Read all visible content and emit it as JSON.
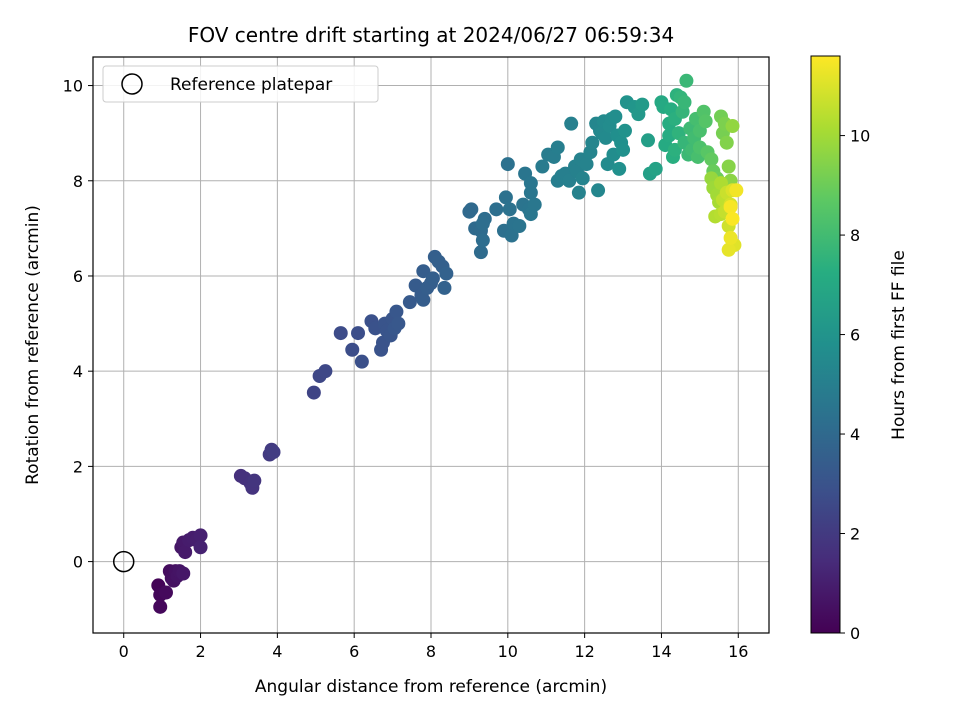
{
  "chart_data": {
    "type": "scatter",
    "title": "FOV centre drift starting at 2024/06/27 06:59:34",
    "xlabel": "Angular distance from reference (arcmin)",
    "ylabel": "Rotation from reference (arcmin)",
    "xlim": [
      -0.8,
      16.8
    ],
    "ylim": [
      -1.5,
      10.6
    ],
    "xticks": [
      0,
      2,
      4,
      6,
      8,
      10,
      12,
      14,
      16
    ],
    "yticks": [
      0,
      2,
      4,
      6,
      8,
      10
    ],
    "grid": true,
    "legend": {
      "position": "upper-left",
      "entries": [
        {
          "label": "Reference platepar",
          "marker": "open-circle",
          "x": 0,
          "y": 0
        }
      ]
    },
    "colorbar": {
      "label": "Hours from first FF file",
      "colormap": "viridis",
      "range": [
        0,
        11.6
      ],
      "ticks": [
        0,
        2,
        4,
        6,
        8,
        10
      ]
    },
    "series": [
      {
        "points": [
          [
            0.9,
            -0.5,
            0.1
          ],
          [
            0.95,
            -0.7,
            0.2
          ],
          [
            0.95,
            -0.95,
            0.25
          ],
          [
            1.1,
            -0.65,
            0.3
          ],
          [
            1.2,
            -0.2,
            0.4
          ],
          [
            1.25,
            -0.35,
            0.45
          ],
          [
            1.3,
            -0.4,
            0.5
          ],
          [
            1.35,
            -0.2,
            0.55
          ],
          [
            1.4,
            -0.3,
            0.6
          ],
          [
            1.45,
            -0.2,
            0.65
          ],
          [
            1.5,
            0.3,
            0.7
          ],
          [
            1.55,
            -0.25,
            0.75
          ],
          [
            1.55,
            0.4,
            0.8
          ],
          [
            1.6,
            0.2,
            0.85
          ],
          [
            1.7,
            0.45,
            0.9
          ],
          [
            1.8,
            0.5,
            0.95
          ],
          [
            1.9,
            0.45,
            1.0
          ],
          [
            2.0,
            0.55,
            1.05
          ],
          [
            2.0,
            0.3,
            1.1
          ],
          [
            3.05,
            1.8,
            1.6
          ],
          [
            3.15,
            1.75,
            1.65
          ],
          [
            3.3,
            1.65,
            1.7
          ],
          [
            3.35,
            1.55,
            1.75
          ],
          [
            3.4,
            1.7,
            1.8
          ],
          [
            3.8,
            2.25,
            2.0
          ],
          [
            3.85,
            2.35,
            2.05
          ],
          [
            3.9,
            2.3,
            2.1
          ],
          [
            4.95,
            3.55,
            2.4
          ],
          [
            5.1,
            3.9,
            2.5
          ],
          [
            5.25,
            4.0,
            2.55
          ],
          [
            5.65,
            4.8,
            2.7
          ],
          [
            5.95,
            4.45,
            2.75
          ],
          [
            6.1,
            4.8,
            2.8
          ],
          [
            6.2,
            4.2,
            2.85
          ],
          [
            6.45,
            5.05,
            2.9
          ],
          [
            6.55,
            4.9,
            2.95
          ],
          [
            6.7,
            4.45,
            3.0
          ],
          [
            6.75,
            4.6,
            3.0
          ],
          [
            6.8,
            5.0,
            3.05
          ],
          [
            6.85,
            4.85,
            3.05
          ],
          [
            6.95,
            4.75,
            3.1
          ],
          [
            7.0,
            5.1,
            3.1
          ],
          [
            7.05,
            4.9,
            3.15
          ],
          [
            7.1,
            5.25,
            3.15
          ],
          [
            7.15,
            5.0,
            3.2
          ],
          [
            7.45,
            5.45,
            3.3
          ],
          [
            7.6,
            5.8,
            3.35
          ],
          [
            7.75,
            5.6,
            3.4
          ],
          [
            7.8,
            6.1,
            3.45
          ],
          [
            7.8,
            5.5,
            3.45
          ],
          [
            7.9,
            5.75,
            3.5
          ],
          [
            8.0,
            5.85,
            3.5
          ],
          [
            8.05,
            5.95,
            3.55
          ],
          [
            8.1,
            6.4,
            3.55
          ],
          [
            8.2,
            6.3,
            3.6
          ],
          [
            8.3,
            6.2,
            3.6
          ],
          [
            8.35,
            5.75,
            3.65
          ],
          [
            8.4,
            6.05,
            3.65
          ],
          [
            9.0,
            7.35,
            4.0
          ],
          [
            9.05,
            7.4,
            4.0
          ],
          [
            9.15,
            7.0,
            4.05
          ],
          [
            9.3,
            6.95,
            4.1
          ],
          [
            9.3,
            6.5,
            4.1
          ],
          [
            9.35,
            6.75,
            4.15
          ],
          [
            9.4,
            7.2,
            4.15
          ],
          [
            9.35,
            7.1,
            4.2
          ],
          [
            9.7,
            7.4,
            4.25
          ],
          [
            9.9,
            6.95,
            4.3
          ],
          [
            9.95,
            7.65,
            4.35
          ],
          [
            10.0,
            8.35,
            4.35
          ],
          [
            10.05,
            7.4,
            4.4
          ],
          [
            10.1,
            6.85,
            4.4
          ],
          [
            10.15,
            7.1,
            4.45
          ],
          [
            10.3,
            7.05,
            4.5
          ],
          [
            10.4,
            7.5,
            4.5
          ],
          [
            10.45,
            8.15,
            4.55
          ],
          [
            10.55,
            7.4,
            4.55
          ],
          [
            10.6,
            7.75,
            4.6
          ],
          [
            10.6,
            7.95,
            4.6
          ],
          [
            10.6,
            7.3,
            4.65
          ],
          [
            10.7,
            7.5,
            4.65
          ],
          [
            10.9,
            8.3,
            4.8
          ],
          [
            11.05,
            8.55,
            4.85
          ],
          [
            11.2,
            8.5,
            4.9
          ],
          [
            11.3,
            8.7,
            4.95
          ],
          [
            11.3,
            8.0,
            4.95
          ],
          [
            11.4,
            8.1,
            5.0
          ],
          [
            11.5,
            8.15,
            5.0
          ],
          [
            11.6,
            8.0,
            5.05
          ],
          [
            11.65,
            9.2,
            5.05
          ],
          [
            11.75,
            8.3,
            5.1
          ],
          [
            11.8,
            8.2,
            5.1
          ],
          [
            11.85,
            7.75,
            5.15
          ],
          [
            11.9,
            8.45,
            5.15
          ],
          [
            11.95,
            8.05,
            5.2
          ],
          [
            12.05,
            8.35,
            5.2
          ],
          [
            12.15,
            8.6,
            5.25
          ],
          [
            12.2,
            8.8,
            5.3
          ],
          [
            12.3,
            9.2,
            5.35
          ],
          [
            12.35,
            7.8,
            5.35
          ],
          [
            12.4,
            9.05,
            5.4
          ],
          [
            12.45,
            9.0,
            5.45
          ],
          [
            12.5,
            9.25,
            5.5
          ],
          [
            12.55,
            8.9,
            5.5
          ],
          [
            12.6,
            8.35,
            5.55
          ],
          [
            12.65,
            9.15,
            5.6
          ],
          [
            12.7,
            9.3,
            5.6
          ],
          [
            12.75,
            8.55,
            5.65
          ],
          [
            12.8,
            9.35,
            5.7
          ],
          [
            12.85,
            8.95,
            5.75
          ],
          [
            12.9,
            8.25,
            5.8
          ],
          [
            12.95,
            8.8,
            5.8
          ],
          [
            13.0,
            8.65,
            5.85
          ],
          [
            13.05,
            9.05,
            5.9
          ],
          [
            13.1,
            9.65,
            5.95
          ],
          [
            13.3,
            9.55,
            6.1
          ],
          [
            13.4,
            9.4,
            6.2
          ],
          [
            13.5,
            9.6,
            6.3
          ],
          [
            13.65,
            8.85,
            6.5
          ],
          [
            13.7,
            8.15,
            6.55
          ],
          [
            13.85,
            8.25,
            6.7
          ],
          [
            14.0,
            9.65,
            7.0
          ],
          [
            14.05,
            9.55,
            7.05
          ],
          [
            14.1,
            8.75,
            7.1
          ],
          [
            14.2,
            8.95,
            7.15
          ],
          [
            14.2,
            9.2,
            7.2
          ],
          [
            14.25,
            9.5,
            7.25
          ],
          [
            14.3,
            8.5,
            7.3
          ],
          [
            14.35,
            9.3,
            7.35
          ],
          [
            14.35,
            8.65,
            7.4
          ],
          [
            14.4,
            9.8,
            7.45
          ],
          [
            14.45,
            9.0,
            7.5
          ],
          [
            14.5,
            9.75,
            7.6
          ],
          [
            14.55,
            9.45,
            7.65
          ],
          [
            14.6,
            8.8,
            7.7
          ],
          [
            14.6,
            9.65,
            7.75
          ],
          [
            14.65,
            10.1,
            7.8
          ],
          [
            14.7,
            8.55,
            7.85
          ],
          [
            14.75,
            9.1,
            7.9
          ],
          [
            14.8,
            8.65,
            7.95
          ],
          [
            14.85,
            8.9,
            8.0
          ],
          [
            14.9,
            9.3,
            8.1
          ],
          [
            14.95,
            8.5,
            8.15
          ],
          [
            15.0,
            9.05,
            8.2
          ],
          [
            15.0,
            8.7,
            8.3
          ],
          [
            15.1,
            9.45,
            8.4
          ],
          [
            15.15,
            9.25,
            8.5
          ],
          [
            15.2,
            8.6,
            8.6
          ],
          [
            15.3,
            8.45,
            8.8
          ],
          [
            15.35,
            8.2,
            8.9
          ],
          [
            15.45,
            8.05,
            9.0
          ],
          [
            15.55,
            9.35,
            9.1
          ],
          [
            15.6,
            9.0,
            9.2
          ],
          [
            15.65,
            9.2,
            9.3
          ],
          [
            15.7,
            8.8,
            9.4
          ],
          [
            15.75,
            8.3,
            9.5
          ],
          [
            15.8,
            8.0,
            9.6
          ],
          [
            15.85,
            9.15,
            9.7
          ],
          [
            15.3,
            8.05,
            9.8
          ],
          [
            15.35,
            7.85,
            9.9
          ],
          [
            15.45,
            7.7,
            10.0
          ],
          [
            15.5,
            7.55,
            10.1
          ],
          [
            15.55,
            7.95,
            10.2
          ],
          [
            15.4,
            7.25,
            10.3
          ],
          [
            15.55,
            7.3,
            10.4
          ],
          [
            15.6,
            7.6,
            10.5
          ],
          [
            15.65,
            7.35,
            10.6
          ],
          [
            15.7,
            7.75,
            10.7
          ],
          [
            15.75,
            7.05,
            10.8
          ],
          [
            15.8,
            7.5,
            10.9
          ],
          [
            15.85,
            7.8,
            11.0
          ],
          [
            15.9,
            6.65,
            11.1
          ],
          [
            15.75,
            6.55,
            11.2
          ],
          [
            15.8,
            6.8,
            11.3
          ],
          [
            15.95,
            7.8,
            11.4
          ],
          [
            15.8,
            7.45,
            11.5
          ],
          [
            15.85,
            7.2,
            11.55
          ]
        ]
      }
    ]
  }
}
